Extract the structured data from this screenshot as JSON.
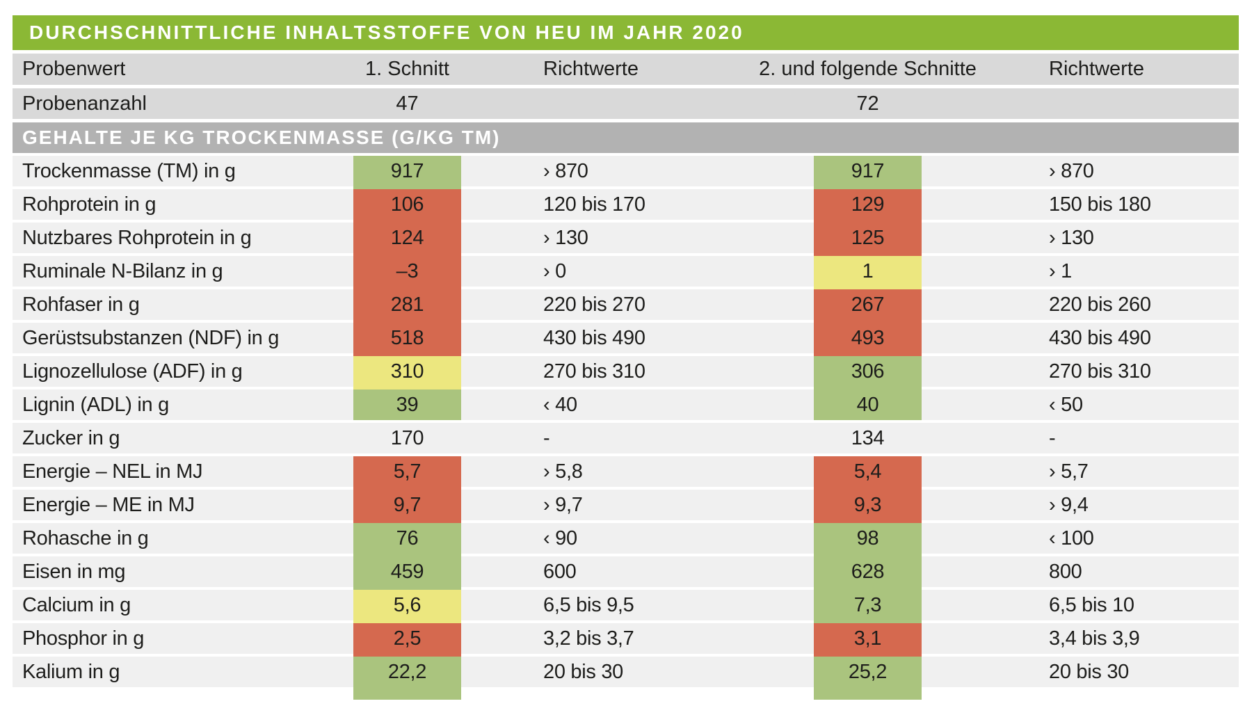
{
  "colors": {
    "title_bar": "#8bb835",
    "section_bar": "#b2b2b2",
    "header_row_bg": "#d9d9d9",
    "data_row_bg": "#f0f0f0",
    "gap": "#ffffff",
    "text": "#1d1d1b",
    "bar_text": "#ffffff",
    "green": "#aac47e",
    "yellow": "#ece77f",
    "red": "#d5694f",
    "none": "transparent"
  },
  "chart_data": {
    "type": "table",
    "title": "DURCHSCHNITTLICHE INHALTSSTOFFE VON HEU IM JAHR 2020",
    "columns": [
      "Probenwert",
      "1. Schnitt",
      "Richtwerte",
      "2. und folgende Schnitte",
      "Richtwerte"
    ],
    "sample_counts": {
      "label": "Probenanzahl",
      "cut1": "47",
      "cut2": "72"
    },
    "section": "GEHALTE JE KG TROCKENMASSE (G/KG TM)",
    "legend_note": "cell colors: green = within guide value, yellow = borderline, red = outside guide value",
    "rows": [
      {
        "label": "Trockenmasse (TM) in g",
        "cut1": "917",
        "cut1_status": "green",
        "guide1": "› 870",
        "cut2": "917",
        "cut2_status": "green",
        "guide2": "› 870"
      },
      {
        "label": "Rohprotein in g",
        "cut1": "106",
        "cut1_status": "red",
        "guide1": "120 bis 170",
        "cut2": "129",
        "cut2_status": "red",
        "guide2": "150 bis 180"
      },
      {
        "label": "Nutzbares Rohprotein in g",
        "cut1": "124",
        "cut1_status": "red",
        "guide1": "› 130",
        "cut2": "125",
        "cut2_status": "red",
        "guide2": "› 130"
      },
      {
        "label": "Ruminale N-Bilanz in g",
        "cut1": "–3",
        "cut1_status": "red",
        "guide1": "› 0",
        "cut2": "1",
        "cut2_status": "yellow",
        "guide2": "› 1"
      },
      {
        "label": "Rohfaser in g",
        "cut1": "281",
        "cut1_status": "red",
        "guide1": "220 bis 270",
        "cut2": "267",
        "cut2_status": "red",
        "guide2": "220 bis 260"
      },
      {
        "label": "Gerüstsubstanzen (NDF) in g",
        "cut1": "518",
        "cut1_status": "red",
        "guide1": "430 bis 490",
        "cut2": "493",
        "cut2_status": "red",
        "guide2": "430 bis 490"
      },
      {
        "label": "Lignozellulose (ADF) in g",
        "cut1": "310",
        "cut1_status": "yellow",
        "guide1": "270 bis 310",
        "cut2": "306",
        "cut2_status": "green",
        "guide2": "270 bis 310"
      },
      {
        "label": "Lignin (ADL) in g",
        "cut1": "39",
        "cut1_status": "green",
        "guide1": "‹ 40",
        "cut2": "40",
        "cut2_status": "green",
        "guide2": "‹ 50"
      },
      {
        "label": "Zucker in g",
        "cut1": "170",
        "cut1_status": "none",
        "guide1": "-",
        "cut2": "134",
        "cut2_status": "none",
        "guide2": "-"
      },
      {
        "label": "Energie – NEL in MJ",
        "cut1": "5,7",
        "cut1_status": "red",
        "guide1": "› 5,8",
        "cut2": "5,4",
        "cut2_status": "red",
        "guide2": "› 5,7"
      },
      {
        "label": "Energie – ME in MJ",
        "cut1": "9,7",
        "cut1_status": "red",
        "guide1": "› 9,7",
        "cut2": "9,3",
        "cut2_status": "red",
        "guide2": "› 9,4"
      },
      {
        "label": "Rohasche in g",
        "cut1": "76",
        "cut1_status": "green",
        "guide1": "‹ 90",
        "cut2": "98",
        "cut2_status": "green",
        "guide2": "‹ 100"
      },
      {
        "label": "Eisen in mg",
        "cut1": "459",
        "cut1_status": "green",
        "guide1": "600",
        "cut2": "628",
        "cut2_status": "green",
        "guide2": "800"
      },
      {
        "label": "Calcium in g",
        "cut1": "5,6",
        "cut1_status": "yellow",
        "guide1": "6,5 bis 9,5",
        "cut2": "7,3",
        "cut2_status": "green",
        "guide2": "6,5 bis 10"
      },
      {
        "label": "Phosphor in g",
        "cut1": "2,5",
        "cut1_status": "red",
        "guide1": "3,2 bis 3,7",
        "cut2": "3,1",
        "cut2_status": "red",
        "guide2": "3,4 bis 3,9"
      },
      {
        "label": "Kalium in g",
        "cut1": "22,2",
        "cut1_status": "green",
        "guide1": "20 bis 30",
        "cut2": "25,2",
        "cut2_status": "green",
        "guide2": "20 bis 30"
      }
    ],
    "stub": {
      "cut1": "green",
      "cut2": "green"
    }
  }
}
